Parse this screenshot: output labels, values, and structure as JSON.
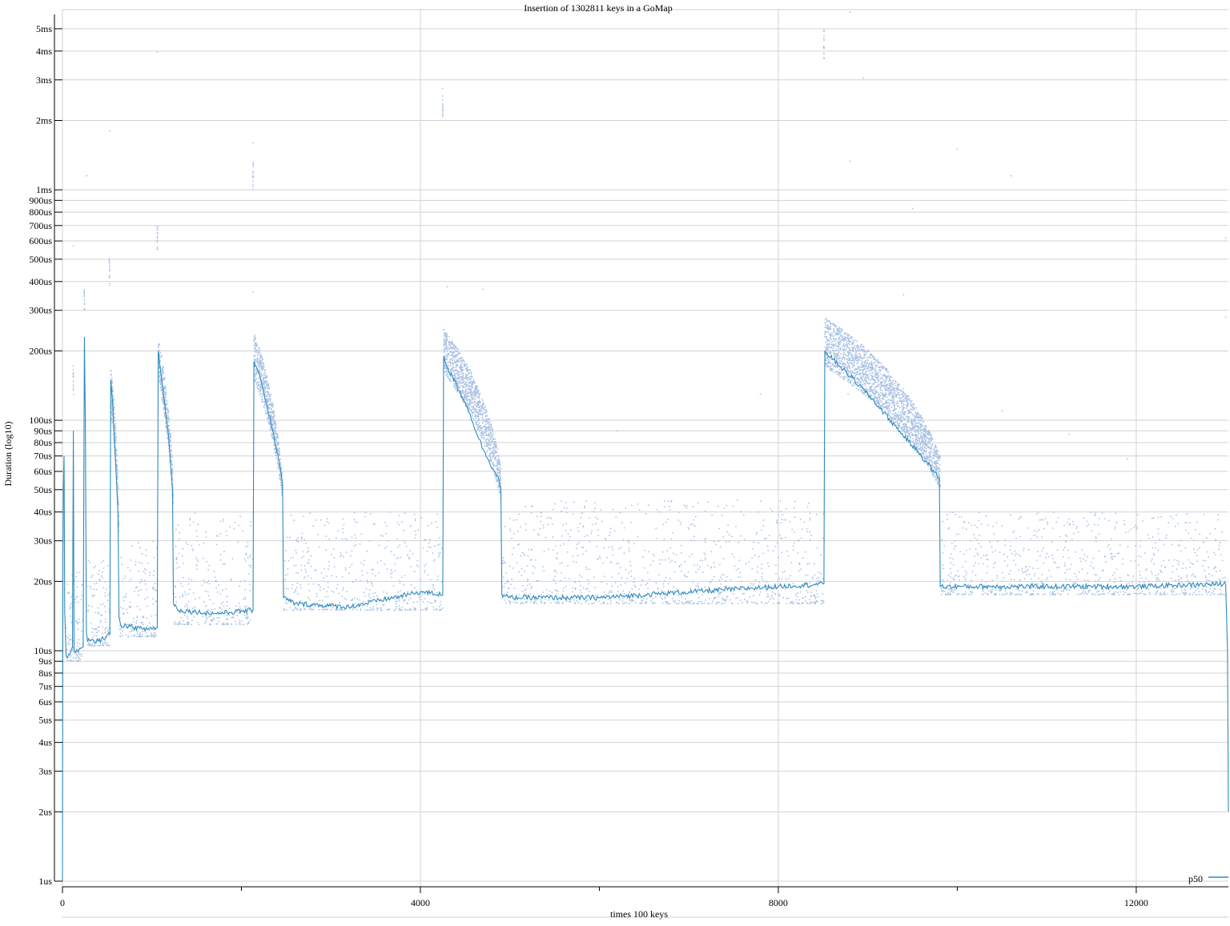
{
  "chart_data": {
    "type": "scatter",
    "title": "Insertion of 1302811 keys in a GoMap",
    "xlabel": "times 100 keys",
    "ylabel": "Duration (log10)",
    "y_scale": "log10",
    "grid": true,
    "legend_position": "bottom-right",
    "xlim": [
      0,
      13030
    ],
    "ylim": [
      1,
      5.5
    ],
    "y_unit": "us",
    "x_ticks": [
      {
        "value": 0,
        "label": "0"
      },
      {
        "value": 4000,
        "label": "4000"
      },
      {
        "value": 8000,
        "label": "8000"
      },
      {
        "value": 12000,
        "label": "12000"
      }
    ],
    "x_minor_ticks": [
      2000,
      6000,
      10000
    ],
    "y_ticks": [
      {
        "value": 1,
        "label": "1us"
      },
      {
        "value": 2,
        "label": "2us"
      },
      {
        "value": 3,
        "label": "3us"
      },
      {
        "value": 4,
        "label": "4us"
      },
      {
        "value": 5,
        "label": "5us"
      },
      {
        "value": 6,
        "label": "6us"
      },
      {
        "value": 7,
        "label": "7us"
      },
      {
        "value": 8,
        "label": "8us"
      },
      {
        "value": 9,
        "label": "9us"
      },
      {
        "value": 10,
        "label": "10us"
      },
      {
        "value": 20,
        "label": "20us"
      },
      {
        "value": 30,
        "label": "30us"
      },
      {
        "value": 40,
        "label": "40us"
      },
      {
        "value": 50,
        "label": "50us"
      },
      {
        "value": 60,
        "label": "60us"
      },
      {
        "value": 70,
        "label": "70us"
      },
      {
        "value": 80,
        "label": "80us"
      },
      {
        "value": 90,
        "label": "90us"
      },
      {
        "value": 100,
        "label": "100us"
      },
      {
        "value": 200,
        "label": "200us"
      },
      {
        "value": 300,
        "label": "300us"
      },
      {
        "value": 400,
        "label": "400us"
      },
      {
        "value": 500,
        "label": "500us"
      },
      {
        "value": 600,
        "label": "600us"
      },
      {
        "value": 700,
        "label": "700us"
      },
      {
        "value": 800,
        "label": "800us"
      },
      {
        "value": 900,
        "label": "900us"
      },
      {
        "value": 1000,
        "label": "1ms"
      },
      {
        "value": 2000,
        "label": "2ms"
      },
      {
        "value": 3000,
        "label": "3ms"
      },
      {
        "value": 4000,
        "label": "4ms"
      },
      {
        "value": 5000,
        "label": "5ms"
      }
    ],
    "series": [
      {
        "name": "p50",
        "kind": "line",
        "color": "#2e8bc0",
        "points": [
          [
            0,
            1
          ],
          [
            5,
            25
          ],
          [
            10,
            50
          ],
          [
            18,
            70
          ],
          [
            25,
            15
          ],
          [
            40,
            9.5
          ],
          [
            80,
            9.6
          ],
          [
            95,
            10
          ],
          [
            112,
            10.4
          ],
          [
            122,
            90
          ],
          [
            130,
            10
          ],
          [
            142,
            9.8
          ],
          [
            180,
            10
          ],
          [
            232,
            10.4
          ],
          [
            245,
            230
          ],
          [
            256,
            100
          ],
          [
            268,
            12
          ],
          [
            280,
            11
          ],
          [
            400,
            11
          ],
          [
            530,
            11.8
          ],
          [
            540,
            150
          ],
          [
            560,
            120
          ],
          [
            620,
            40
          ],
          [
            632,
            14
          ],
          [
            650,
            13
          ],
          [
            900,
            12.4
          ],
          [
            1060,
            12.6
          ],
          [
            1070,
            200
          ],
          [
            1100,
            160
          ],
          [
            1180,
            90
          ],
          [
            1230,
            50
          ],
          [
            1240,
            16
          ],
          [
            1300,
            15
          ],
          [
            1700,
            14.5
          ],
          [
            2130,
            15
          ],
          [
            2140,
            180
          ],
          [
            2200,
            160
          ],
          [
            2350,
            90
          ],
          [
            2440,
            60
          ],
          [
            2460,
            52
          ],
          [
            2470,
            17
          ],
          [
            2600,
            16
          ],
          [
            3200,
            15.5
          ],
          [
            4000,
            18
          ],
          [
            4250,
            17.5
          ],
          [
            4260,
            190
          ],
          [
            4300,
            170
          ],
          [
            4500,
            120
          ],
          [
            4700,
            75
          ],
          [
            4880,
            55
          ],
          [
            4900,
            50
          ],
          [
            4910,
            17.5
          ],
          [
            5000,
            17
          ],
          [
            6000,
            17
          ],
          [
            7000,
            18
          ],
          [
            8000,
            19
          ],
          [
            8510,
            19.5
          ],
          [
            8520,
            200
          ],
          [
            8700,
            170
          ],
          [
            9000,
            130
          ],
          [
            9300,
            95
          ],
          [
            9600,
            70
          ],
          [
            9800,
            56
          ],
          [
            9810,
            19
          ],
          [
            10500,
            19
          ],
          [
            11500,
            19
          ],
          [
            12000,
            19
          ],
          [
            13000,
            19.5
          ],
          [
            13020,
            10
          ],
          [
            13030,
            2
          ]
        ]
      },
      {
        "name": "",
        "kind": "scatter",
        "color": "#a9c1e3",
        "bands": [
          {
            "x": [
              40,
              232
            ],
            "y": [
              9,
              22
            ]
          },
          {
            "x": [
              280,
              530
            ],
            "y": [
              10.5,
              25
            ]
          },
          {
            "x": [
              640,
              1060
            ],
            "y": [
              11.5,
              30
            ]
          },
          {
            "x": [
              1240,
              2130
            ],
            "y": [
              13,
              40
            ]
          },
          {
            "x": [
              2470,
              4250
            ],
            "y": [
              15,
              40
            ]
          },
          {
            "x": [
              4910,
              8510
            ],
            "y": [
              16,
              45
            ]
          },
          {
            "x": [
              9810,
              13000
            ],
            "y": [
              17.5,
              40
            ]
          }
        ],
        "ramps": [
          {
            "x": [
              540,
              632
            ],
            "y_top": [
              170,
              40
            ],
            "y_bottom": [
              110,
              30
            ]
          },
          {
            "x": [
              1070,
              1240
            ],
            "y_top": [
              230,
              55
            ],
            "y_bottom": [
              150,
              40
            ]
          },
          {
            "x": [
              2140,
              2460
            ],
            "y_top": [
              240,
              55
            ],
            "y_bottom": [
              150,
              45
            ]
          },
          {
            "x": [
              4260,
              4900
            ],
            "y_top": [
              250,
              65
            ],
            "y_bottom": [
              160,
              45
            ]
          },
          {
            "x": [
              8520,
              9810
            ],
            "y_top": [
              280,
              70
            ],
            "y_bottom": [
              170,
              50
            ]
          }
        ],
        "spikes": [
          {
            "x": 122,
            "y": 150
          },
          {
            "x": 245,
            "y": 340
          },
          {
            "x": 525,
            "y": 440
          },
          {
            "x": 1060,
            "y": 620
          },
          {
            "x": 2130,
            "y": 1150
          },
          {
            "x": 4250,
            "y": 2400
          },
          {
            "x": 8510,
            "y": 4300
          }
        ],
        "outliers": [
          {
            "x": 270,
            "y": 1150
          },
          {
            "x": 1060,
            "y": 3950
          },
          {
            "x": 530,
            "y": 1800
          },
          {
            "x": 2130,
            "y": 1600
          },
          {
            "x": 8800,
            "y": 5900
          },
          {
            "x": 8950,
            "y": 3050
          },
          {
            "x": 8800,
            "y": 1330
          },
          {
            "x": 10000,
            "y": 1500
          },
          {
            "x": 10600,
            "y": 1150
          },
          {
            "x": 9500,
            "y": 830
          },
          {
            "x": 13000,
            "y": 620
          },
          {
            "x": 13000,
            "y": 280
          },
          {
            "x": 120,
            "y": 570
          },
          {
            "x": 2130,
            "y": 360
          },
          {
            "x": 4300,
            "y": 380
          },
          {
            "x": 4700,
            "y": 370
          },
          {
            "x": 7800,
            "y": 130
          },
          {
            "x": 8780,
            "y": 130
          },
          {
            "x": 9400,
            "y": 350
          },
          {
            "x": 11250,
            "y": 87
          },
          {
            "x": 10500,
            "y": 110
          },
          {
            "x": 11900,
            "y": 68
          },
          {
            "x": 6200,
            "y": 90
          }
        ]
      }
    ]
  }
}
